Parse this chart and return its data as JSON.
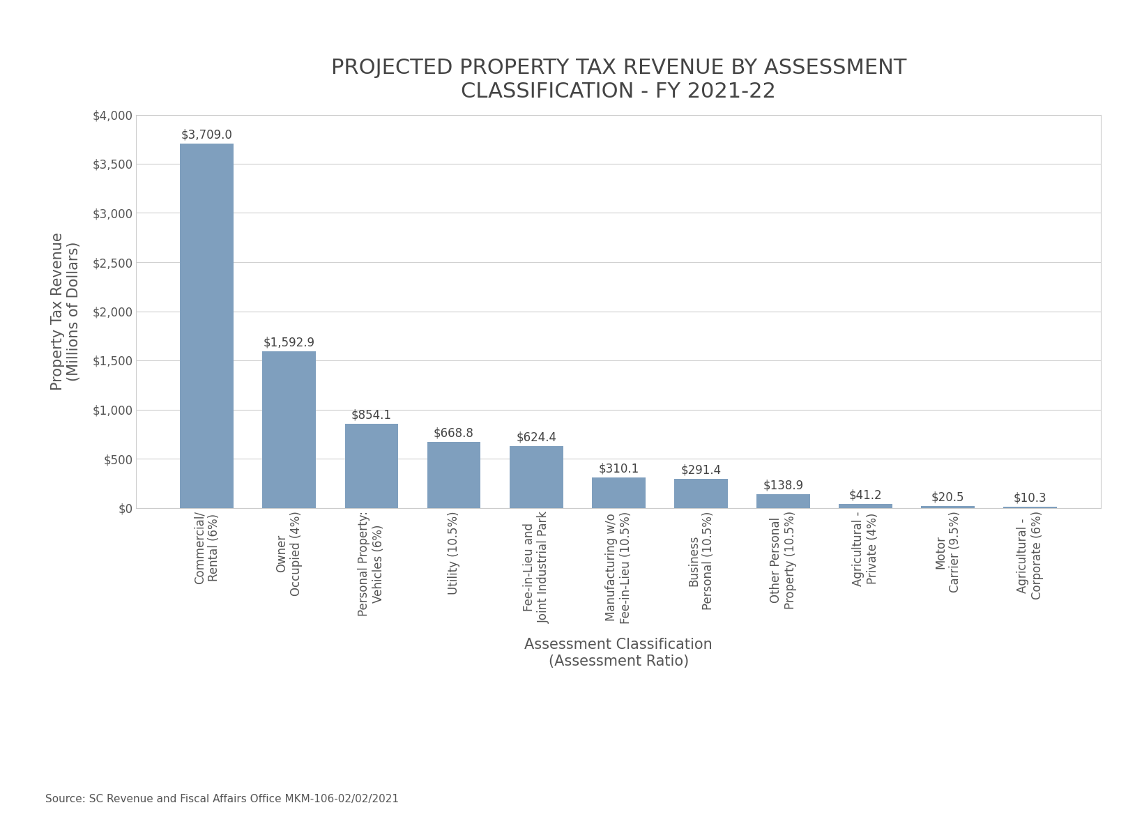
{
  "title_line1": "PROJECTED PROPERTY TAX REVENUE BY ASSESSMENT",
  "title_line2": "CLASSIFICATION - FY 2021-22",
  "categories": [
    "Commercial/\nRental (6%)",
    "Owner\nOccupied (4%)",
    "Personal Property:\nVehicles (6%)",
    "Utility (10.5%)",
    "Fee-in-Lieu and\nJoint Industrial Park",
    "Manufacturing w/o\nFee-in-Lieu (10.5%)",
    "Business\nPersonal (10.5%)",
    "Other Personal\nProperty (10.5%)",
    "Agricultural -\nPrivate (4%)",
    "Motor\nCarrier (9.5%)",
    "Agricultural -\nCorporate (6%)"
  ],
  "values": [
    3709.0,
    1592.9,
    854.1,
    668.8,
    624.4,
    310.1,
    291.4,
    138.9,
    41.2,
    20.5,
    10.3
  ],
  "bar_color": "#7f9fbe",
  "ylabel": "Property Tax Revenue\n(Millions of Dollars)",
  "xlabel": "Assessment Classification\n(Assessment Ratio)",
  "ylim": [
    0,
    4000
  ],
  "yticks": [
    0,
    500,
    1000,
    1500,
    2000,
    2500,
    3000,
    3500,
    4000
  ],
  "ytick_labels": [
    "$0",
    "$500",
    "$1,000",
    "$1,500",
    "$2,000",
    "$2,500",
    "$3,000",
    "$3,500",
    "$4,000"
  ],
  "source_text": "Source: SC Revenue and Fiscal Affairs Office MKM-106-02/02/2021",
  "background_color": "#ffffff",
  "grid_color": "#d0d0d0",
  "title_fontsize": 22,
  "axis_label_fontsize": 15,
  "tick_fontsize": 12,
  "bar_label_fontsize": 12,
  "source_fontsize": 11
}
